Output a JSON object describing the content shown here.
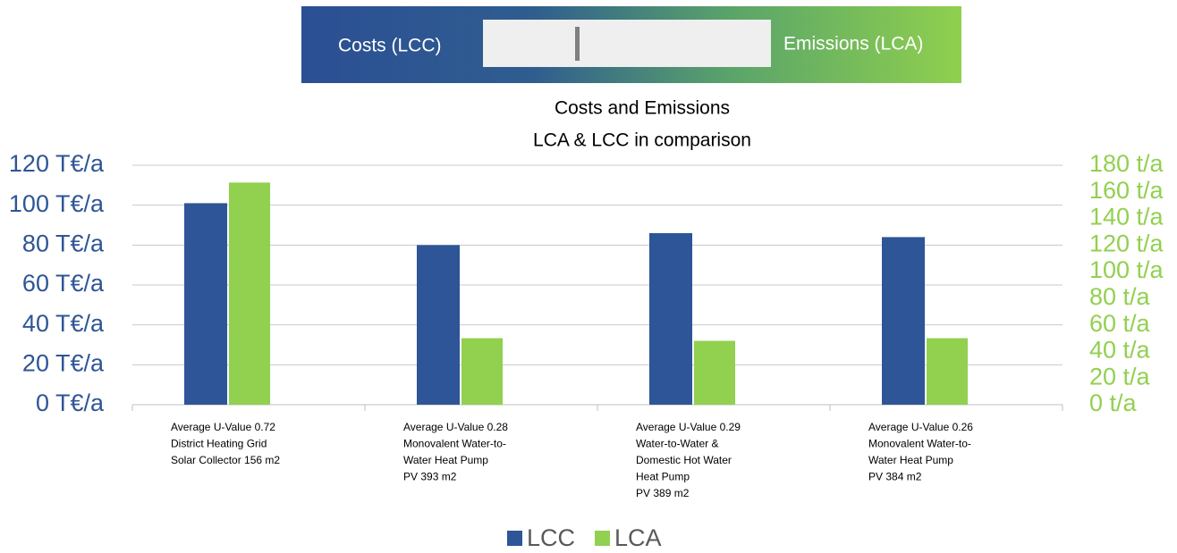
{
  "slider": {
    "left_label": "Costs (LCC)",
    "right_label": "Emissions (LCA)"
  },
  "chart_data": {
    "type": "bar",
    "title": [
      "Costs and Emissions",
      "LCA & LCC in comparison"
    ],
    "categories": [
      [
        "Average U-Value 0.72",
        "District Heating Grid",
        "Solar Collector 156 m2"
      ],
      [
        "Average U-Value 0.28",
        "Monovalent Water-to-",
        "Water Heat Pump",
        "PV 393 m2"
      ],
      [
        "Average U-Value 0.29",
        "Water-to-Water &",
        "Domestic Hot Water",
        "Heat Pump",
        "PV 389 m2"
      ],
      [
        "Average U-Value 0.26",
        "Monovalent Water-to-",
        "Water Heat Pump",
        "PV 384 m2"
      ]
    ],
    "series": [
      {
        "name": "LCC",
        "color": "#2e5597",
        "values": [
          101,
          80,
          86,
          84
        ]
      },
      {
        "name": "LCA",
        "color": "#92d050",
        "values": [
          167,
          50,
          48,
          50
        ],
        "axis": "y2"
      }
    ],
    "ylim": [
      0,
      120
    ],
    "yticks": [
      {
        "value": 0,
        "label": "0 T€/a"
      },
      {
        "value": 20,
        "label": "20 T€/a"
      },
      {
        "value": 40,
        "label": "40 T€/a"
      },
      {
        "value": 60,
        "label": "60 T€/a"
      },
      {
        "value": 80,
        "label": "80 T€/a"
      },
      {
        "value": 100,
        "label": "100 T€/a"
      },
      {
        "value": 120,
        "label": "120 T€/a"
      }
    ],
    "y2lim": [
      0,
      180
    ],
    "y2ticks": [
      {
        "value": 0,
        "label": "0 t/a"
      },
      {
        "value": 20,
        "label": "20 t/a"
      },
      {
        "value": 40,
        "label": "40 t/a"
      },
      {
        "value": 60,
        "label": "60 t/a"
      },
      {
        "value": 80,
        "label": "80 t/a"
      },
      {
        "value": 100,
        "label": "100 t/a"
      },
      {
        "value": 120,
        "label": "120 t/a"
      },
      {
        "value": 140,
        "label": "140 t/a"
      },
      {
        "value": 160,
        "label": "160 t/a"
      },
      {
        "value": 180,
        "label": "180 t/a"
      }
    ],
    "grid": true,
    "legend": "bottom"
  }
}
